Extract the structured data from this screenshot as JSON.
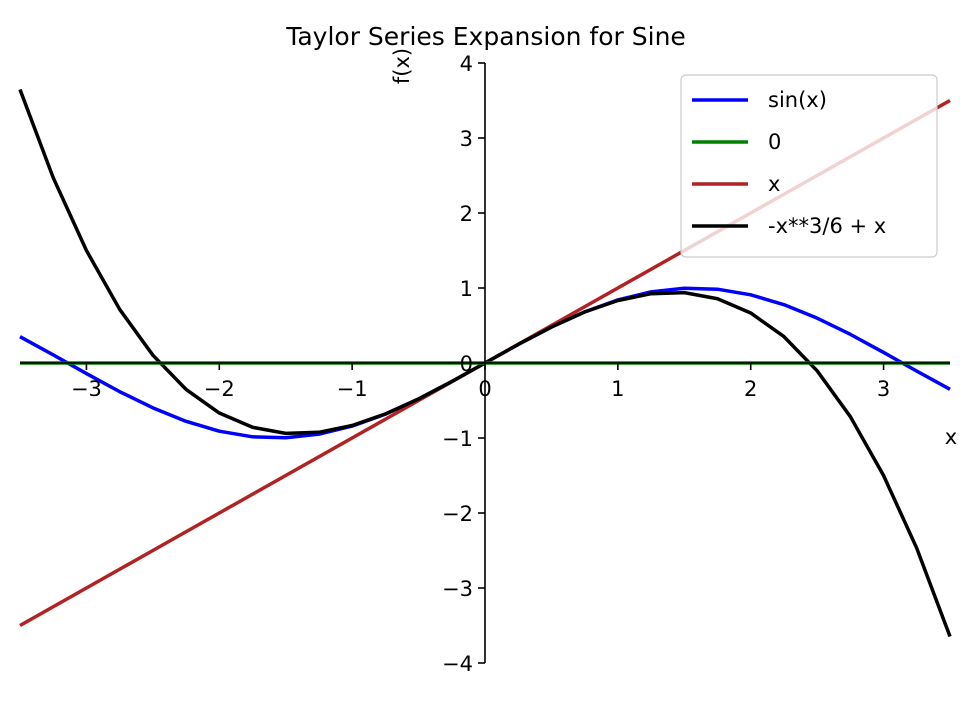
{
  "chart_data": {
    "type": "line",
    "title": "Taylor Series Expansion for Sine",
    "xlabel": "x",
    "ylabel": "f(x)",
    "xlim": [
      -3.5,
      3.5
    ],
    "ylim": [
      -4,
      4
    ],
    "x_ticks": [
      -3,
      -2,
      -1,
      0,
      1,
      2,
      3
    ],
    "y_ticks": [
      -4,
      -3,
      -2,
      -1,
      0,
      1,
      2,
      3,
      4
    ],
    "x_tick_labels": [
      "−3",
      "−2",
      "−1",
      "0",
      "1",
      "2",
      "3"
    ],
    "y_tick_labels": [
      "−4",
      "−3",
      "−2",
      "−1",
      "0",
      "1",
      "2",
      "3",
      "4"
    ],
    "grid": false,
    "legend_position": "top-right",
    "x": [
      -3.5,
      -3.25,
      -3.0,
      -2.75,
      -2.5,
      -2.25,
      -2.0,
      -1.75,
      -1.5,
      -1.25,
      -1.0,
      -0.75,
      -0.5,
      -0.25,
      0.0,
      0.25,
      0.5,
      0.75,
      1.0,
      1.25,
      1.5,
      1.75,
      2.0,
      2.25,
      2.5,
      2.75,
      3.0,
      3.25,
      3.5
    ],
    "series": [
      {
        "name": "sin(x)",
        "color": "#0000ff",
        "values": [
          0.351,
          0.108,
          -0.141,
          -0.382,
          -0.598,
          -0.778,
          -0.909,
          -0.984,
          -0.997,
          -0.949,
          -0.841,
          -0.682,
          -0.479,
          -0.247,
          0.0,
          0.247,
          0.479,
          0.682,
          0.841,
          0.949,
          0.997,
          0.984,
          0.909,
          0.778,
          0.598,
          0.382,
          0.141,
          -0.108,
          -0.351
        ]
      },
      {
        "name": "0",
        "color": "#008000",
        "values": [
          0,
          0,
          0,
          0,
          0,
          0,
          0,
          0,
          0,
          0,
          0,
          0,
          0,
          0,
          0,
          0,
          0,
          0,
          0,
          0,
          0,
          0,
          0,
          0,
          0,
          0,
          0,
          0,
          0
        ]
      },
      {
        "name": "x",
        "color": "#b22222",
        "values": [
          -3.5,
          -3.25,
          -3.0,
          -2.75,
          -2.5,
          -2.25,
          -2.0,
          -1.75,
          -1.5,
          -1.25,
          -1.0,
          -0.75,
          -0.5,
          -0.25,
          0.0,
          0.25,
          0.5,
          0.75,
          1.0,
          1.25,
          1.5,
          1.75,
          2.0,
          2.25,
          2.5,
          2.75,
          3.0,
          3.25,
          3.5
        ]
      },
      {
        "name": "-x**3/6 + x",
        "color": "#000000",
        "values": [
          3.646,
          2.471,
          1.5,
          0.716,
          0.104,
          -0.352,
          -0.667,
          -0.857,
          -0.938,
          -0.924,
          -0.833,
          -0.68,
          -0.479,
          -0.247,
          0.0,
          0.247,
          0.479,
          0.68,
          0.833,
          0.924,
          0.938,
          0.857,
          0.667,
          0.352,
          -0.104,
          -0.716,
          -1.5,
          -2.471,
          -3.646
        ]
      }
    ]
  }
}
